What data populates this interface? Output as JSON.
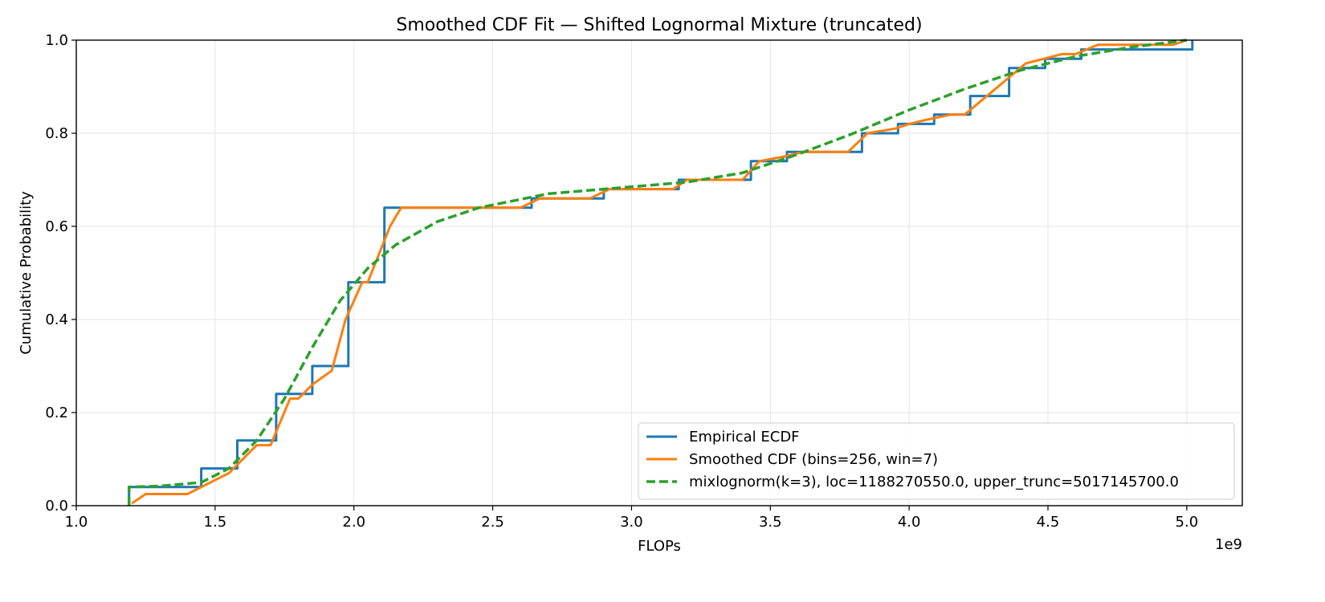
{
  "chart_data": {
    "type": "line",
    "title": "Smoothed CDF Fit — Shifted Lognormal Mixture (truncated)",
    "xlabel": "FLOPs",
    "ylabel": "Cumulative Probability",
    "x_offset_label": "1e9",
    "xlim": [
      1.0,
      5.2
    ],
    "ylim": [
      0.0,
      1.0
    ],
    "x_ticks": [
      1.0,
      1.5,
      2.0,
      2.5,
      3.0,
      3.5,
      4.0,
      4.5,
      5.0
    ],
    "x_tick_labels": [
      "1.0",
      "1.5",
      "2.0",
      "2.5",
      "3.0",
      "3.5",
      "4.0",
      "4.5",
      "5.0"
    ],
    "y_ticks": [
      0.0,
      0.2,
      0.4,
      0.6,
      0.8,
      1.0
    ],
    "y_tick_labels": [
      "0.0",
      "0.2",
      "0.4",
      "0.6",
      "0.8",
      "1.0"
    ],
    "grid": true,
    "legend_position": "lower right",
    "series": [
      {
        "name": "Empirical ECDF",
        "style": "step",
        "color": "#1f77b4",
        "x": [
          1.19,
          1.19,
          1.45,
          1.45,
          1.58,
          1.58,
          1.72,
          1.72,
          1.85,
          1.85,
          1.98,
          1.98,
          2.11,
          2.11,
          2.64,
          2.64,
          2.9,
          2.9,
          3.17,
          3.17,
          3.43,
          3.43,
          3.56,
          3.56,
          3.83,
          3.83,
          3.96,
          3.96,
          4.09,
          4.09,
          4.22,
          4.22,
          4.36,
          4.36,
          4.49,
          4.49,
          4.62,
          4.62,
          5.02,
          5.02
        ],
        "y": [
          0.0,
          0.04,
          0.04,
          0.08,
          0.08,
          0.14,
          0.14,
          0.24,
          0.24,
          0.3,
          0.3,
          0.48,
          0.48,
          0.64,
          0.64,
          0.66,
          0.66,
          0.68,
          0.68,
          0.7,
          0.7,
          0.74,
          0.74,
          0.76,
          0.76,
          0.8,
          0.8,
          0.82,
          0.82,
          0.84,
          0.84,
          0.88,
          0.88,
          0.94,
          0.94,
          0.96,
          0.96,
          0.98,
          0.98,
          1.0
        ]
      },
      {
        "name": "Smoothed CDF (bins=256, win=7)",
        "style": "line",
        "color": "#ff7f0e",
        "x": [
          1.2,
          1.25,
          1.4,
          1.55,
          1.65,
          1.7,
          1.77,
          1.8,
          1.85,
          1.92,
          1.97,
          2.03,
          2.05,
          2.13,
          2.17,
          2.6,
          2.67,
          2.85,
          2.92,
          3.15,
          3.2,
          3.4,
          3.46,
          3.55,
          3.62,
          3.78,
          3.85,
          3.95,
          4.0,
          4.07,
          4.15,
          4.2,
          4.3,
          4.38,
          4.42,
          4.55,
          4.6,
          4.68,
          4.95,
          5.0
        ],
        "y": [
          0.005,
          0.025,
          0.025,
          0.07,
          0.13,
          0.13,
          0.23,
          0.23,
          0.26,
          0.29,
          0.4,
          0.48,
          0.48,
          0.6,
          0.64,
          0.64,
          0.66,
          0.66,
          0.68,
          0.68,
          0.7,
          0.7,
          0.74,
          0.75,
          0.76,
          0.76,
          0.8,
          0.81,
          0.82,
          0.83,
          0.84,
          0.84,
          0.89,
          0.93,
          0.95,
          0.97,
          0.97,
          0.99,
          0.99,
          1.0
        ]
      },
      {
        "name": "mixlognorm(k=3), loc=1188270550.0, upper_trunc=5017145700.0",
        "style": "dashed",
        "color": "#2ca02c",
        "x": [
          1.19,
          1.19,
          1.3,
          1.45,
          1.55,
          1.65,
          1.75,
          1.85,
          1.95,
          2.05,
          2.15,
          2.3,
          2.45,
          2.7,
          3.0,
          3.2,
          3.4,
          3.6,
          3.8,
          4.0,
          4.2,
          4.4,
          4.6,
          4.8,
          5.0
        ],
        "y": [
          0.0,
          0.04,
          0.042,
          0.05,
          0.08,
          0.14,
          0.23,
          0.34,
          0.44,
          0.51,
          0.56,
          0.61,
          0.64,
          0.67,
          0.685,
          0.695,
          0.715,
          0.755,
          0.8,
          0.85,
          0.895,
          0.935,
          0.965,
          0.985,
          1.0
        ]
      }
    ]
  }
}
